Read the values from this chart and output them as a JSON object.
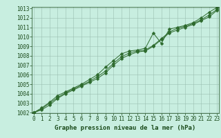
{
  "x": [
    0,
    1,
    2,
    3,
    4,
    5,
    6,
    7,
    8,
    9,
    10,
    11,
    12,
    13,
    14,
    15,
    16,
    17,
    18,
    19,
    20,
    21,
    22,
    23
  ],
  "line1": [
    1002.0,
    1002.5,
    1003.1,
    1003.8,
    1004.2,
    1004.6,
    1005.0,
    1005.5,
    1006.0,
    1006.8,
    1007.5,
    1008.2,
    1008.5,
    1008.6,
    1008.8,
    1010.4,
    1009.3,
    1010.8,
    1011.0,
    1011.2,
    1011.5,
    1012.0,
    1012.6,
    1013.1
  ],
  "line2": [
    1002.0,
    1002.4,
    1003.0,
    1003.6,
    1004.1,
    1004.5,
    1004.9,
    1005.3,
    1005.8,
    1006.4,
    1007.2,
    1007.9,
    1008.3,
    1008.5,
    1008.6,
    1009.1,
    1009.8,
    1010.5,
    1010.9,
    1011.1,
    1011.4,
    1011.8,
    1012.3,
    1012.9
  ],
  "line3": [
    1002.0,
    1002.3,
    1002.8,
    1003.5,
    1004.0,
    1004.4,
    1004.8,
    1005.2,
    1005.6,
    1006.2,
    1007.0,
    1007.7,
    1008.1,
    1008.4,
    1008.5,
    1009.0,
    1009.7,
    1010.4,
    1010.7,
    1011.0,
    1011.3,
    1011.7,
    1012.1,
    1012.8
  ],
  "line_color": "#2d6a2d",
  "bg_color": "#c8eee0",
  "grid_color": "#9abfb0",
  "xlabel": "Graphe pression niveau de la mer (hPa)",
  "xlabel_color": "#1a4a1a",
  "tick_color": "#1a4a1a",
  "ylim_min": 1002,
  "ylim_max": 1013,
  "xlim_min": 0,
  "xlim_max": 23,
  "yticks": [
    1002,
    1003,
    1004,
    1005,
    1006,
    1007,
    1008,
    1009,
    1010,
    1011,
    1012,
    1013
  ],
  "xticks": [
    0,
    1,
    2,
    3,
    4,
    5,
    6,
    7,
    8,
    9,
    10,
    11,
    12,
    13,
    14,
    15,
    16,
    17,
    18,
    19,
    20,
    21,
    22,
    23
  ],
  "tick_fontsize": 5.5,
  "xlabel_fontsize": 6.5,
  "linewidth": 0.7,
  "markersize": 2.5
}
